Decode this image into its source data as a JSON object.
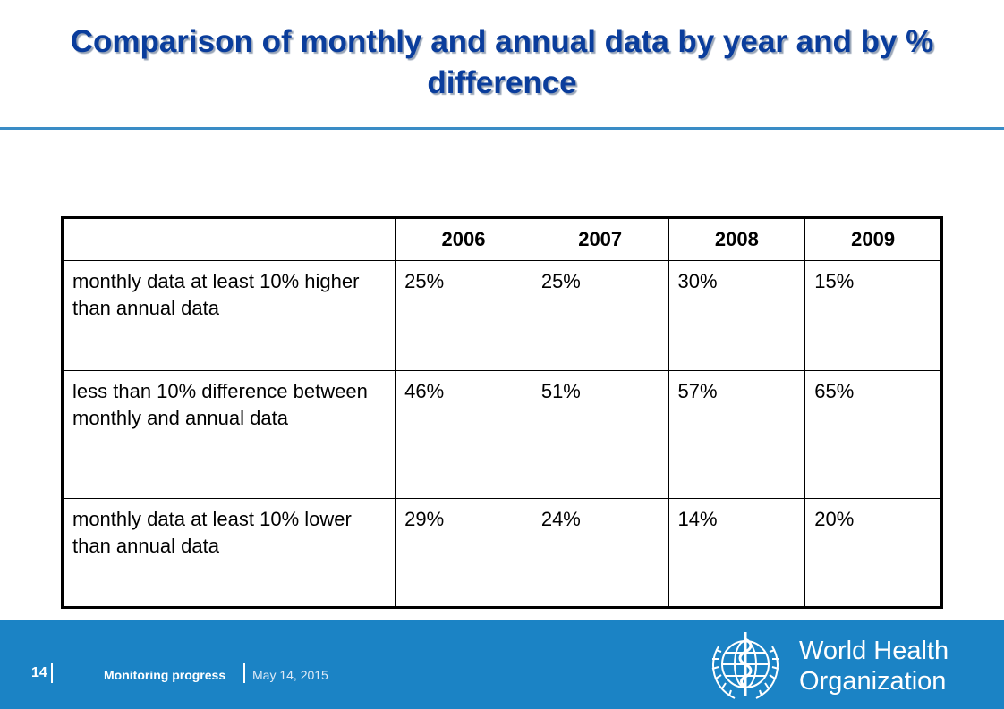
{
  "slide": {
    "title": "Comparison of monthly and annual data by year and by % difference"
  },
  "table": {
    "headers": [
      "",
      "2006",
      "2007",
      "2008",
      "2009"
    ],
    "rows": [
      {
        "label": "monthly data at least 10% higher than annual data",
        "values": [
          "25%",
          "25%",
          "30%",
          "15%"
        ]
      },
      {
        "label": "less than 10% difference between monthly and annual data",
        "values": [
          "46%",
          "51%",
          "57%",
          "65%"
        ]
      },
      {
        "label": "monthly data at least 10% lower than annual data",
        "values": [
          "29%",
          "24%",
          "14%",
          "20%"
        ]
      }
    ]
  },
  "footer": {
    "slide_number": "14",
    "presentation_title": "Monitoring progress",
    "date": "May 14, 2015",
    "logo_line1": "World Health",
    "logo_line2": "Organization"
  },
  "colors": {
    "title": "#0a3d9c",
    "footer_band": "#1b83c5",
    "rule": "#3a8cc6"
  },
  "icons": {
    "logo": "who-emblem-icon"
  }
}
